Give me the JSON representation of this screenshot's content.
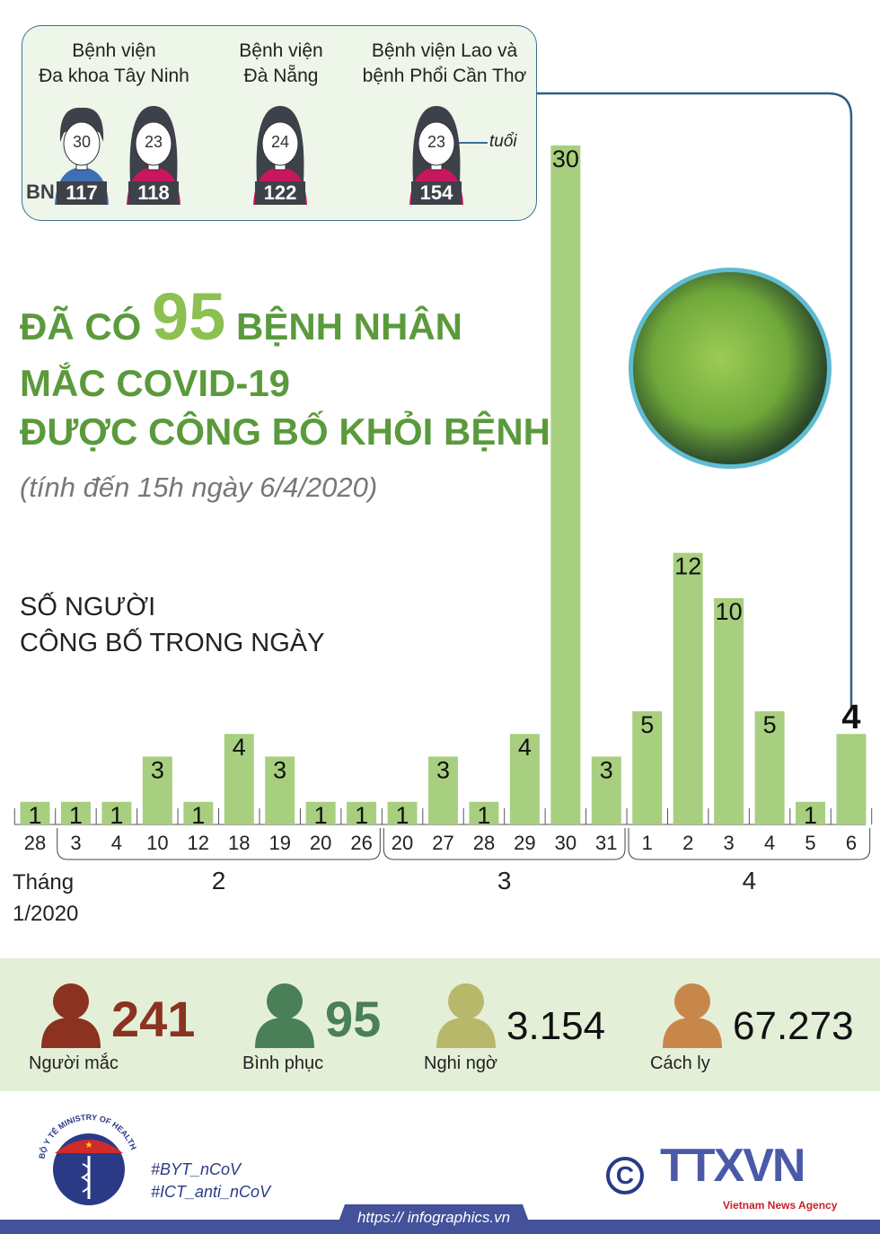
{
  "hospitals": [
    {
      "name": "Bệnh viện\nĐa khoa Tây Ninh",
      "patients": [
        {
          "id": "117",
          "age": "30",
          "gender": "male"
        },
        {
          "id": "118",
          "age": "23",
          "gender": "female"
        }
      ]
    },
    {
      "name": "Bệnh viện\nĐà Nẵng",
      "patients": [
        {
          "id": "122",
          "age": "24",
          "gender": "female"
        }
      ]
    },
    {
      "name": "Bệnh viện Lao và\nbệnh Phổi Cần Thơ",
      "patients": [
        {
          "id": "154",
          "age": "23",
          "gender": "female"
        }
      ]
    }
  ],
  "bn_label": "BN",
  "age_label": "tuổi",
  "headline": {
    "line1_pre": "ĐÃ CÓ",
    "number": "95",
    "line1_post": "BỆNH NHÂN",
    "line2": "MẮC COVID-19",
    "line3": "ĐƯỢC CÔNG BỐ KHỎI BỆNH"
  },
  "subtitle": "(tính đến 15h ngày 6/4/2020)",
  "chart_heading": {
    "line1": "SỐ NGƯỜI",
    "line2": "CÔNG BỐ TRONG NGÀY"
  },
  "chart_data": {
    "type": "bar",
    "title": "SỐ NGƯỜI CÔNG BỐ TRONG NGÀY",
    "categories": [
      "28",
      "3",
      "4",
      "10",
      "12",
      "18",
      "19",
      "20",
      "26",
      "20",
      "27",
      "28",
      "29",
      "30",
      "31",
      "1",
      "2",
      "3",
      "4",
      "5",
      "6"
    ],
    "values": [
      1,
      1,
      1,
      3,
      1,
      4,
      3,
      1,
      1,
      1,
      3,
      1,
      4,
      30,
      3,
      5,
      12,
      10,
      5,
      1,
      4
    ],
    "month_groups": [
      {
        "label": "Tháng\n1/2020",
        "from": 0,
        "to": 0
      },
      {
        "label": "2",
        "from": 1,
        "to": 8
      },
      {
        "label": "3",
        "from": 9,
        "to": 14
      },
      {
        "label": "4",
        "from": 15,
        "to": 20
      }
    ],
    "highlight_last": true,
    "bar_color": "#a8cf7f",
    "ylim": [
      0,
      30
    ]
  },
  "stats": [
    {
      "value": "241",
      "label": "Người mắc",
      "color": "#8b3220"
    },
    {
      "value": "95",
      "label": "Bình phục",
      "color": "#4a7f58"
    },
    {
      "value": "3.154",
      "label": "Nghi ngờ",
      "color": "#b8b86a"
    },
    {
      "value": "67.273",
      "label": "Cách ly",
      "color": "#c8874a"
    }
  ],
  "footer": {
    "hashtags": [
      "#BYT_nCoV",
      "#ICT_anti_nCoV"
    ],
    "url": "https:// infographics.vn",
    "ministry_logo_text": "BỘ Y TẾ MINISTRY OF HEALTH",
    "agency_logo": "TTXVN",
    "agency_sub": "Vietnam News Agency",
    "copyright": "©"
  }
}
